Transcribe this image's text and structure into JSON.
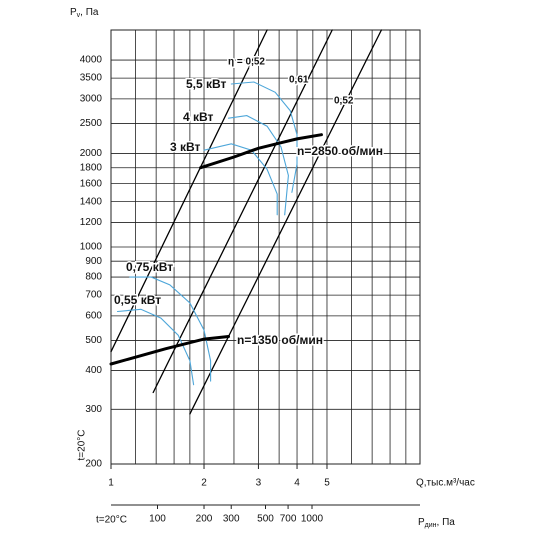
{
  "chart_data": {
    "type": "line",
    "log_x": true,
    "log_y": true,
    "grid": true,
    "ylabel": [
      "P",
      "v",
      ", Па"
    ],
    "xlabel": "Q,тыс.м³/час",
    "temperature": "t=20°C",
    "xlim": [
      1,
      10
    ],
    "ylim": [
      200,
      5000
    ],
    "xticks": [
      1,
      2,
      3,
      4,
      5
    ],
    "x_grid": [
      1.2,
      1.4,
      1.6,
      1.8,
      2,
      2.5,
      3,
      3.5,
      4,
      4.5,
      5,
      6,
      7,
      8,
      9
    ],
    "yticks": [
      200,
      300,
      400,
      500,
      600,
      700,
      800,
      900,
      1000,
      1200,
      1400,
      1600,
      1800,
      2000,
      2500,
      3000,
      3500,
      4000
    ],
    "secondary_x": {
      "label": [
        "P",
        "дин",
        ", Па"
      ],
      "xlim": [
        50,
        5000
      ],
      "ticks": [
        100,
        200,
        300,
        500,
        700,
        1000
      ]
    },
    "speed_curves": [
      {
        "name": "n=2850 об/мин",
        "color": "#000000",
        "x": [
          1.95,
          2.5,
          3,
          3.5,
          4,
          4.8
        ],
        "values": [
          1800,
          1950,
          2080,
          2160,
          2230,
          2300
        ]
      },
      {
        "name": "n=1350 об/мин",
        "color": "#000000",
        "x": [
          1,
          1.5,
          2,
          2.4
        ],
        "values": [
          420,
          470,
          505,
          515
        ]
      }
    ],
    "efficiency_lines": [
      {
        "name": "η = 0,52",
        "color": "#000000",
        "x": [
          1,
          3.2
        ],
        "values": [
          460,
          5000
        ]
      },
      {
        "name": "0,61",
        "color": "#000000",
        "x": [
          1.37,
          5.2
        ],
        "values": [
          340,
          5000
        ]
      },
      {
        "name": "0,52",
        "color": "#000000",
        "x": [
          1.8,
          7.5
        ],
        "values": [
          290,
          5000
        ]
      }
    ],
    "power_curves": [
      {
        "name": "5,5 кВт",
        "color": "#4da6d9",
        "x": [
          2.45,
          2.9,
          3.4,
          3.8,
          4.0,
          4.0,
          3.85
        ],
        "values": [
          3350,
          3400,
          3150,
          2750,
          2300,
          1850,
          1500
        ]
      },
      {
        "name": "4 кВт",
        "color": "#4da6d9",
        "x": [
          2.4,
          2.75,
          3.2,
          3.55,
          3.75,
          3.65
        ],
        "values": [
          2600,
          2650,
          2450,
          2100,
          1700,
          1270
        ]
      },
      {
        "name": "3 кВт",
        "color": "#4da6d9",
        "x": [
          2.0,
          2.45,
          2.85,
          3.2,
          3.45,
          3.45
        ],
        "values": [
          2050,
          2150,
          2050,
          1780,
          1480,
          1270
        ]
      },
      {
        "name": "0,75 кВт",
        "color": "#4da6d9",
        "x": [
          1.15,
          1.35,
          1.55,
          1.8,
          2.0,
          2.1,
          2.1
        ],
        "values": [
          800,
          800,
          755,
          660,
          540,
          430,
          370
        ]
      },
      {
        "name": "0,55 кВт",
        "color": "#4da6d9",
        "x": [
          1.05,
          1.25,
          1.45,
          1.65,
          1.8,
          1.85
        ],
        "values": [
          620,
          630,
          590,
          520,
          430,
          360
        ]
      }
    ]
  }
}
